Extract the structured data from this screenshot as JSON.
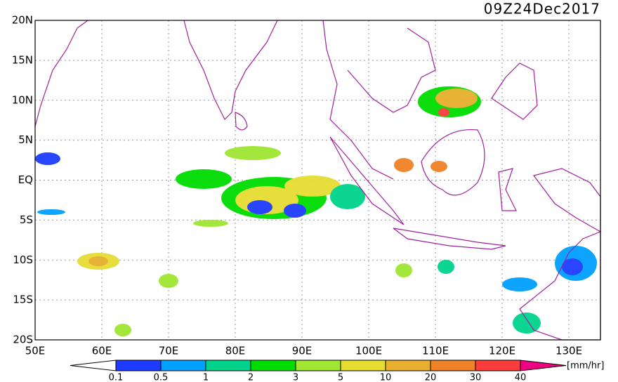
{
  "title": "09Z24Dec2017",
  "map": {
    "lat_labels": [
      "20N",
      "15N",
      "10N",
      "5N",
      "EQ",
      "5S",
      "10S",
      "15S",
      "20S"
    ],
    "lon_labels": [
      "50E",
      "60E",
      "70E",
      "80E",
      "90E",
      "100E",
      "110E",
      "120E",
      "130E"
    ]
  },
  "colorbar": {
    "labels": [
      "0.1",
      "0.5",
      "1",
      "2",
      "3",
      "5",
      "10",
      "20",
      "30",
      "40"
    ],
    "unit": "[mm/hr]",
    "under_color": "#ffffff",
    "colors": [
      "#1e3cff",
      "#00a0ff",
      "#00d28c",
      "#00dc00",
      "#a0e632",
      "#e6dc32",
      "#e6af2d",
      "#f08228",
      "#fa3c3c"
    ],
    "over_color": "#f00082"
  }
}
